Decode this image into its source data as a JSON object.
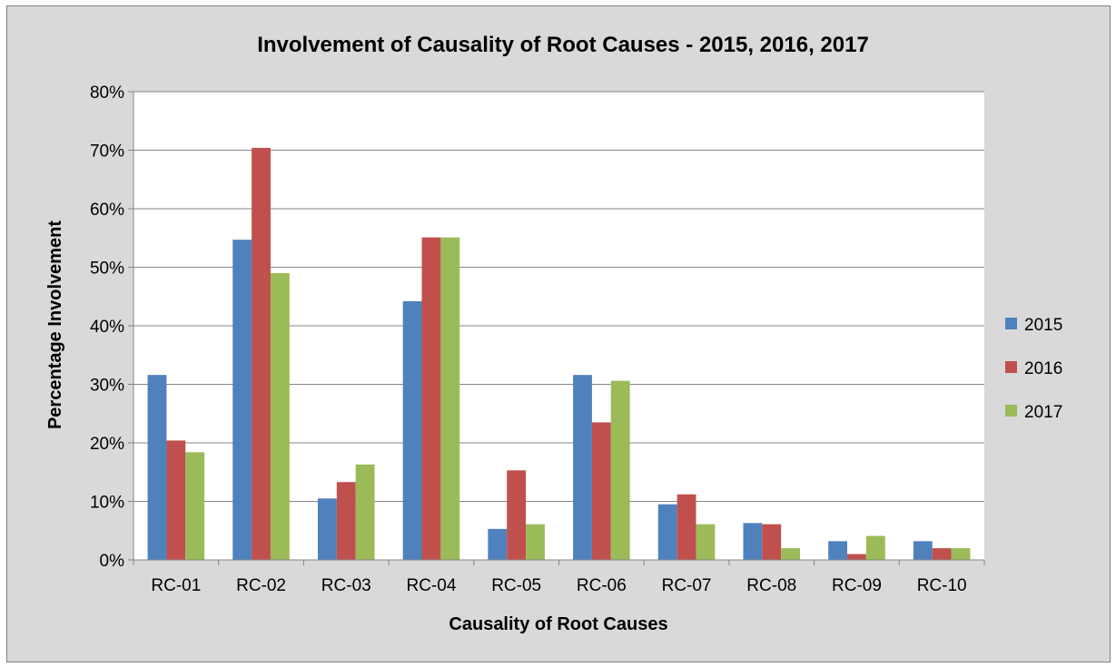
{
  "chart_data": {
    "type": "bar",
    "title": "Involvement of Causality of Root Causes - 2015, 2016, 2017",
    "xlabel": "Causality of Root Causes",
    "ylabel": "Percentage Involvement",
    "categories": [
      "RC-01",
      "RC-02",
      "RC-03",
      "RC-04",
      "RC-05",
      "RC-06",
      "RC-07",
      "RC-08",
      "RC-09",
      "RC-10"
    ],
    "series": [
      {
        "name": "2015",
        "color": "#4f81bd",
        "values": [
          31.6,
          54.7,
          10.5,
          44.2,
          5.3,
          31.6,
          9.5,
          6.3,
          3.2,
          3.2
        ]
      },
      {
        "name": "2016",
        "color": "#c0504d",
        "values": [
          20.4,
          70.4,
          13.3,
          55.1,
          15.3,
          23.5,
          11.2,
          6.1,
          1.0,
          2.0
        ]
      },
      {
        "name": "2017",
        "color": "#9bbb59",
        "values": [
          18.4,
          49.0,
          16.3,
          55.1,
          6.1,
          30.6,
          6.1,
          2.0,
          4.1,
          2.0
        ]
      }
    ],
    "ylim": [
      0,
      80
    ],
    "yticks": [
      "0%",
      "10%",
      "20%",
      "30%",
      "40%",
      "50%",
      "60%",
      "70%",
      "80%"
    ],
    "grid": true,
    "legend_position": "right",
    "background_color": "#d9d9d9",
    "plot_background_color": "#ffffff"
  }
}
